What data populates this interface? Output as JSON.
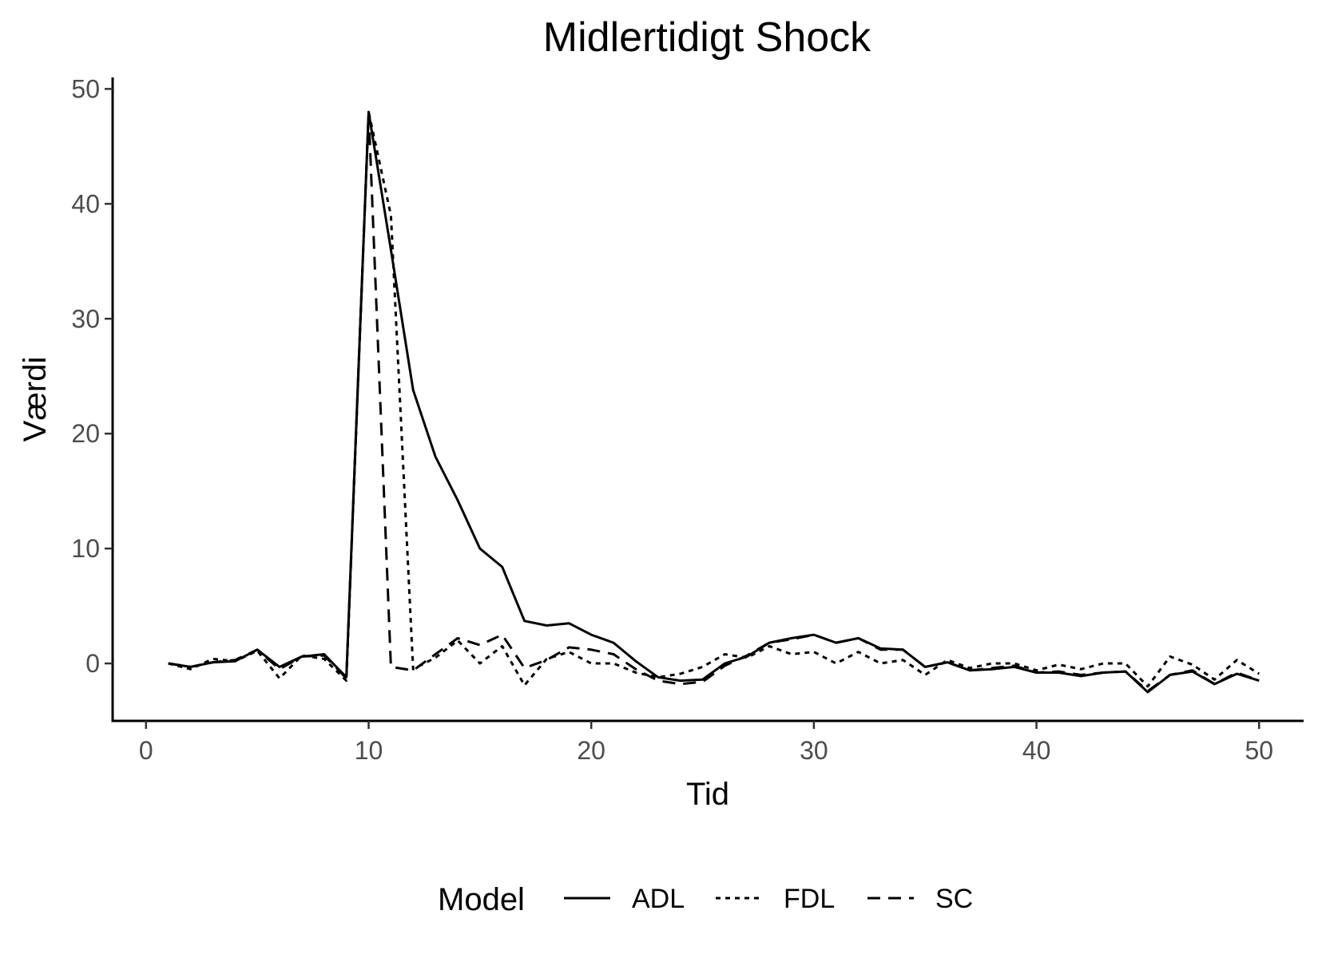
{
  "chart_data": {
    "type": "line",
    "title": "Midlertidigt Shock",
    "xlabel": "Tid",
    "ylabel": "Værdi",
    "xlim": [
      -1.5,
      52
    ],
    "ylim": [
      -5,
      51
    ],
    "xticks": [
      0,
      10,
      20,
      30,
      40,
      50
    ],
    "yticks": [
      0,
      10,
      20,
      30,
      40,
      50
    ],
    "grid": false,
    "legend": {
      "title": "Model",
      "position": "bottom"
    },
    "x": [
      1,
      2,
      3,
      4,
      5,
      6,
      7,
      8,
      9,
      10,
      11,
      12,
      13,
      14,
      15,
      16,
      17,
      18,
      19,
      20,
      21,
      22,
      23,
      24,
      25,
      26,
      27,
      28,
      29,
      30,
      31,
      32,
      33,
      34,
      35,
      36,
      37,
      38,
      39,
      40,
      41,
      42,
      43,
      44,
      45,
      46,
      47,
      48,
      49,
      50
    ],
    "series": [
      {
        "name": "ADL",
        "dash": "solid",
        "values": [
          0,
          -0.3,
          0.1,
          0.2,
          1.2,
          -0.3,
          0.6,
          0.8,
          -1.2,
          48,
          36,
          23.8,
          18,
          14.2,
          10,
          8.4,
          3.7,
          3.3,
          3.5,
          2.5,
          1.8,
          0.2,
          -1.2,
          -1.5,
          -1.4,
          0,
          0.6,
          1.8,
          2.2,
          2.5,
          1.8,
          2.2,
          1.3,
          1.2,
          -0.3,
          0.1,
          -0.6,
          -0.5,
          -0.3,
          -0.8,
          -0.8,
          -1.1,
          -0.8,
          -0.7,
          -2.5,
          -1.0,
          -0.7,
          -1.8,
          -0.9,
          -1.5
        ]
      },
      {
        "name": "FDL",
        "dash": "dotted",
        "values": [
          0,
          -0.5,
          0.4,
          0.2,
          1.1,
          -1.3,
          0.7,
          0.4,
          -1.5,
          48,
          39,
          -0.5,
          0.5,
          2.0,
          0,
          1.5,
          -1.9,
          0.4,
          1.0,
          0,
          0,
          -0.8,
          -1.2,
          -0.9,
          -0.3,
          0.8,
          0.5,
          1.5,
          0.8,
          1.0,
          0,
          1.0,
          0,
          0.3,
          -1.0,
          0.3,
          -0.4,
          0,
          0,
          -0.6,
          -0.1,
          -0.5,
          0,
          0,
          -2.0,
          0.6,
          -0.1,
          -1.4,
          0.3,
          -0.9
        ]
      },
      {
        "name": "SC",
        "dash": "dashed",
        "values": [
          0,
          -0.3,
          0.1,
          0.3,
          1.2,
          -0.5,
          0.6,
          0.7,
          -1.3,
          48,
          -0.3,
          -0.6,
          0.8,
          2.2,
          1.6,
          2.5,
          -0.4,
          0.3,
          1.4,
          1.2,
          0.8,
          -0.5,
          -1.5,
          -1.8,
          -1.6,
          -0.2,
          0.7,
          1.8,
          2.1,
          2.5,
          1.8,
          2.2,
          1.2,
          1.2,
          -0.3,
          0.1,
          -0.6,
          -0.4,
          -0.2,
          -0.8,
          -0.7,
          -1.0,
          -0.8,
          -0.7,
          -2.4,
          -1.0,
          -0.6,
          -1.8,
          -0.8,
          -1.5
        ]
      }
    ]
  }
}
